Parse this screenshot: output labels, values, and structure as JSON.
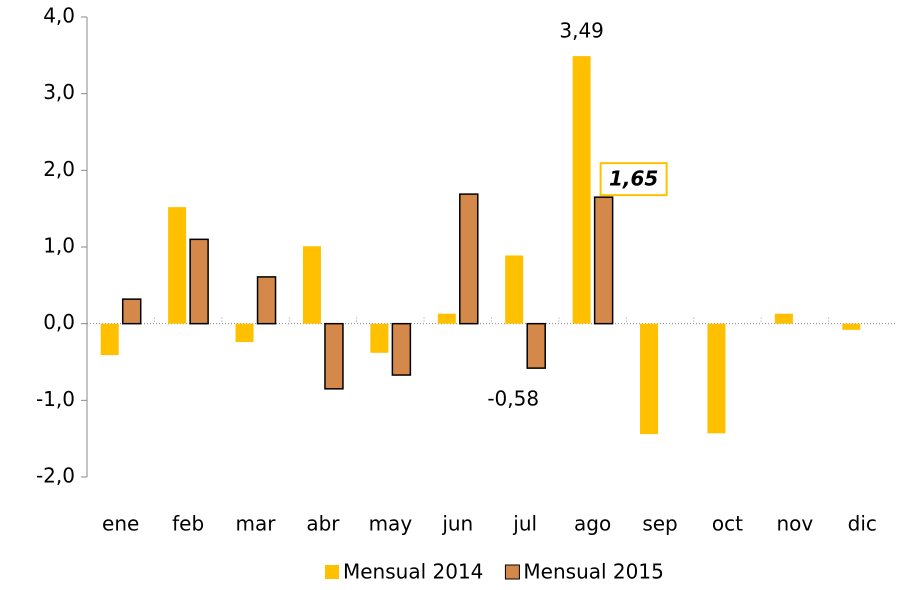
{
  "chart_data": {
    "type": "bar",
    "categories": [
      "ene",
      "feb",
      "mar",
      "abr",
      "may",
      "jun",
      "jul",
      "ago",
      "sep",
      "oct",
      "nov",
      "dic"
    ],
    "series": [
      {
        "name": "Mensual 2014",
        "color": "#FFC000",
        "values": [
          -0.41,
          1.52,
          -0.24,
          1.01,
          -0.38,
          0.13,
          0.89,
          3.49,
          -1.44,
          -1.43,
          0.13,
          -0.08
        ],
        "value_labels": [
          null,
          null,
          null,
          null,
          null,
          null,
          null,
          "3,49",
          null,
          null,
          null,
          null
        ]
      },
      {
        "name": "Mensual 2015",
        "color": "#D4894A",
        "values": [
          0.32,
          1.1,
          0.61,
          -0.85,
          -0.67,
          1.69,
          -0.58,
          1.65,
          null,
          null,
          null,
          null
        ],
        "value_labels": [
          null,
          null,
          null,
          null,
          null,
          null,
          "-0,58",
          "1,65",
          null,
          null,
          null,
          null
        ]
      }
    ],
    "ylim": [
      -2,
      4
    ],
    "yticks": [
      {
        "value": -2,
        "label": "-2,0"
      },
      {
        "value": -1,
        "label": "-1,0"
      },
      {
        "value": 0,
        "label": "0,0"
      },
      {
        "value": 1,
        "label": "1,0"
      },
      {
        "value": 2,
        "label": "2,0"
      },
      {
        "value": 3,
        "label": "3,0"
      },
      {
        "value": 4,
        "label": "4,0"
      }
    ],
    "legend": "bottom"
  }
}
